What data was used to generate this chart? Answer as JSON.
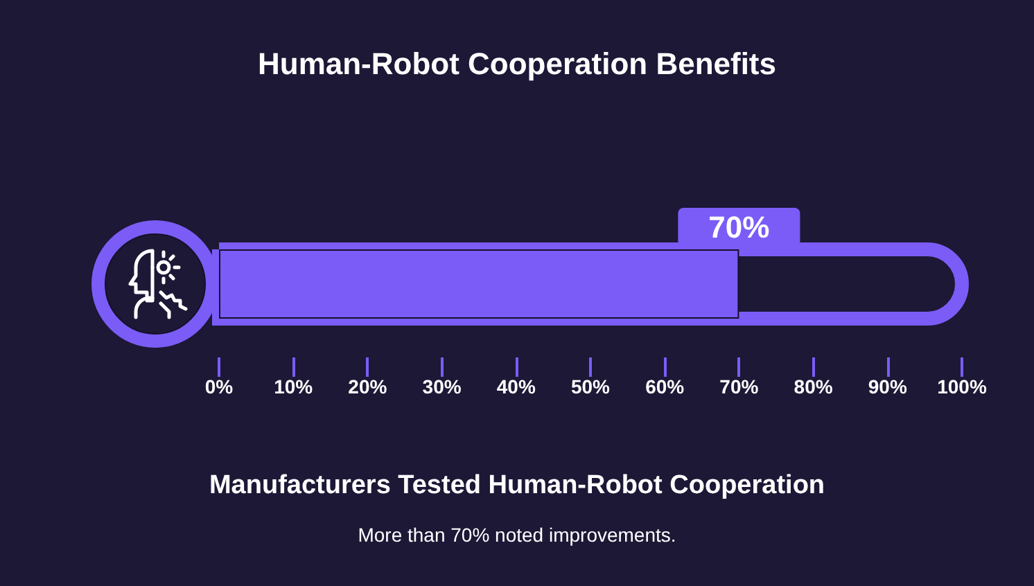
{
  "chart_data": {
    "type": "bar",
    "orientation": "horizontal",
    "title": "Human-Robot Cooperation Benefits",
    "xlabel": "Manufacturers Tested Human-Robot Cooperation",
    "annotations": [
      "More than 70% noted improvements."
    ],
    "categories": [
      null
    ],
    "values": [
      70
    ],
    "value_labels": [
      "70%"
    ],
    "color": "#7b5cf6",
    "xlim": [
      0,
      100
    ],
    "xticks": [
      {
        "value": 0,
        "label": "0%"
      },
      {
        "value": 10,
        "label": "10%"
      },
      {
        "value": 20,
        "label": "20%"
      },
      {
        "value": 30,
        "label": "30%"
      },
      {
        "value": 40,
        "label": "40%"
      },
      {
        "value": 50,
        "label": "50%"
      },
      {
        "value": 60,
        "label": "60%"
      },
      {
        "value": 70,
        "label": "70%"
      },
      {
        "value": 80,
        "label": "80%"
      },
      {
        "value": 90,
        "label": "90%"
      },
      {
        "value": 100,
        "label": "100%"
      }
    ],
    "tick_labels": "x",
    "grid": false
  }
}
